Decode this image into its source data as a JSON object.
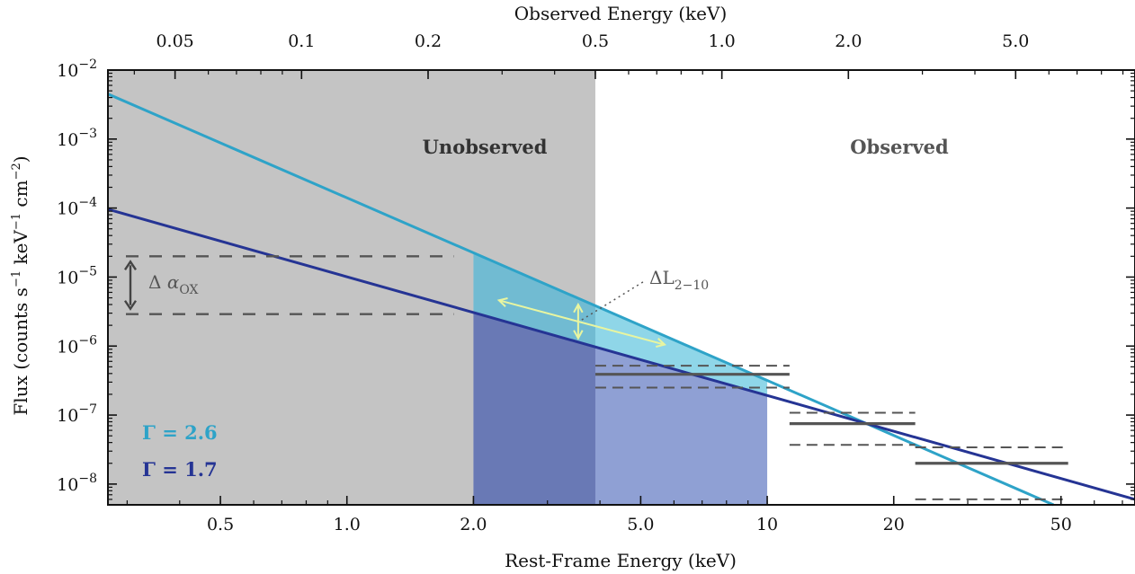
{
  "chart_data": {
    "type": "line",
    "xlabel": "Rest-Frame Energy (keV)",
    "x2label": "Observed Energy (keV)",
    "ylabel_parts": [
      "Flux (counts s",
      "−1",
      " keV",
      "−1",
      " cm",
      "−2",
      ")"
    ],
    "xscale": "log",
    "yscale": "log",
    "xlim": [
      0.27,
      75
    ],
    "ylim": [
      5e-09,
      0.01
    ],
    "x_ticks": [
      {
        "value": 0.5,
        "label": "0.5"
      },
      {
        "value": 1.0,
        "label": "1.0"
      },
      {
        "value": 2.0,
        "label": "2.0"
      },
      {
        "value": 5.0,
        "label": "5.0"
      },
      {
        "value": 10,
        "label": "10"
      },
      {
        "value": 20,
        "label": "20"
      },
      {
        "value": 50,
        "label": "50"
      }
    ],
    "x2_ticks": [
      {
        "value": 0.05,
        "label": "0.05"
      },
      {
        "value": 0.1,
        "label": "0.1"
      },
      {
        "value": 0.2,
        "label": "0.2"
      },
      {
        "value": 0.5,
        "label": "0.5"
      },
      {
        "value": 1.0,
        "label": "1.0"
      },
      {
        "value": 2.0,
        "label": "2.0"
      },
      {
        "value": 5.0,
        "label": "5.0"
      }
    ],
    "y_ticks": [
      {
        "exp": -2,
        "label": "10",
        "sup": "−2"
      },
      {
        "exp": -3,
        "label": "10",
        "sup": "−3"
      },
      {
        "exp": -4,
        "label": "10",
        "sup": "−4"
      },
      {
        "exp": -5,
        "label": "10",
        "sup": "−5"
      },
      {
        "exp": -6,
        "label": "10",
        "sup": "−6"
      },
      {
        "exp": -7,
        "label": "10",
        "sup": "−7"
      },
      {
        "exp": -8,
        "label": "10",
        "sup": "−8"
      }
    ],
    "regions": [
      {
        "label": "Unobserved",
        "color": "#c4c4c4",
        "label_color": "#333333"
      },
      {
        "label": "Observed",
        "color": "#ffffff",
        "label_color": "#555555"
      }
    ],
    "series": [
      {
        "label": "Γ = 2.6",
        "color": "#2ea3c8",
        "x": [
          0.27,
          48
        ],
        "y": [
          0.0045,
          5e-09
        ]
      },
      {
        "label": "Γ = 1.7",
        "color": "#253494",
        "x": [
          0.27,
          75
        ],
        "y": [
          9.6e-05,
          6e-09
        ]
      }
    ],
    "bands": [
      {
        "x": [
          2.0,
          10.0
        ],
        "color": "#8fa0d4"
      },
      {
        "x": [
          2.0,
          10.0
        ],
        "color": "#8fd6e8"
      }
    ],
    "data_bins": [
      {
        "x": [
          3.9,
          11.3
        ],
        "y": 3.9e-07,
        "y_upper": 5.2e-07,
        "y_lower": 2.5e-07
      },
      {
        "x": [
          11.3,
          22.5
        ],
        "y": 7.5e-08,
        "y_upper": 1.08e-07,
        "y_lower": 3.7e-08
      },
      {
        "x": [
          22.5,
          52
        ],
        "y": 2e-08,
        "y_upper": 3.4e-08,
        "y_lower": 6e-09
      }
    ],
    "alpha_ox_levels": [
      2e-05,
      2.9e-06
    ],
    "annotations": {
      "delta_alpha_ox": [
        "Δ ",
        "α",
        "OX"
      ],
      "delta_l": [
        "ΔL",
        "2−10"
      ]
    }
  }
}
